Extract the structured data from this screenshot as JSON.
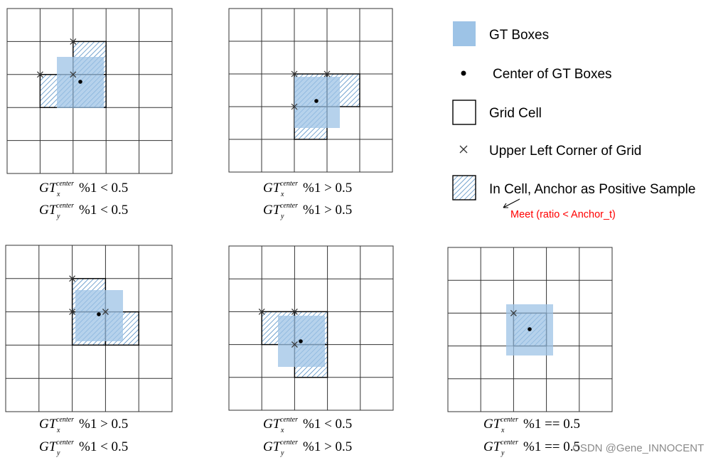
{
  "legend": {
    "gt_boxes": "GT Boxes",
    "center": "Center of GT Boxes",
    "grid_cell": "Grid Cell",
    "upper_left": "Upper Left Corner of Grid",
    "in_cell": "In Cell, Anchor as Positive Sample",
    "annotation": "Meet (ratio < Anchor_t)"
  },
  "panels": [
    {
      "label_x": {
        "gt": "GT",
        "sub": "x",
        "sup": "center",
        "rest": "%1 < 0.5"
      },
      "label_y": {
        "gt": "GT",
        "sub": "y",
        "sup": "center",
        "rest": "%1 < 0.5"
      }
    },
    {
      "label_x": {
        "gt": "GT",
        "sub": "x",
        "sup": "center",
        "rest": "%1 > 0.5"
      },
      "label_y": {
        "gt": "GT",
        "sub": "y",
        "sup": "center",
        "rest": "%1 > 0.5"
      }
    },
    {
      "label_x": {
        "gt": "GT",
        "sub": "x",
        "sup": "center",
        "rest": "%1 > 0.5"
      },
      "label_y": {
        "gt": "GT",
        "sub": "y",
        "sup": "center",
        "rest": "%1 < 0.5"
      }
    },
    {
      "label_x": {
        "gt": "GT",
        "sub": "x",
        "sup": "center",
        "rest": "%1 < 0.5"
      },
      "label_y": {
        "gt": "GT",
        "sub": "y",
        "sup": "center",
        "rest": "%1 > 0.5"
      }
    },
    {
      "label_x": {
        "gt": "GT",
        "sub": "x",
        "sup": "center",
        "rest": "%1 == 0.5"
      },
      "label_y": {
        "gt": "GT",
        "sub": "y",
        "sup": "center",
        "rest": "%1 == 0.5"
      }
    }
  ],
  "watermark": "CSDN @Gene_INNOCENT",
  "colors": {
    "gt_fill": "#9dc3e6",
    "hatch": "#2e75b6",
    "annotation": "#ff0000",
    "grid": "#333333"
  }
}
